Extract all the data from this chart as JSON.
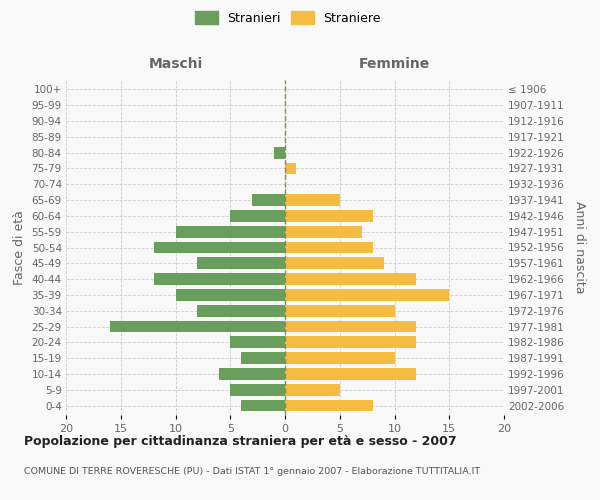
{
  "age_groups": [
    "100+",
    "95-99",
    "90-94",
    "85-89",
    "80-84",
    "75-79",
    "70-74",
    "65-69",
    "60-64",
    "55-59",
    "50-54",
    "45-49",
    "40-44",
    "35-39",
    "30-34",
    "25-29",
    "20-24",
    "15-19",
    "10-14",
    "5-9",
    "0-4"
  ],
  "birth_years": [
    "≤ 1906",
    "1907-1911",
    "1912-1916",
    "1917-1921",
    "1922-1926",
    "1927-1931",
    "1932-1936",
    "1937-1941",
    "1942-1946",
    "1947-1951",
    "1952-1956",
    "1957-1961",
    "1962-1966",
    "1967-1971",
    "1972-1976",
    "1977-1981",
    "1982-1986",
    "1987-1991",
    "1992-1996",
    "1997-2001",
    "2002-2006"
  ],
  "males": [
    0,
    0,
    0,
    0,
    1,
    0,
    0,
    3,
    5,
    10,
    12,
    8,
    12,
    10,
    8,
    16,
    5,
    4,
    6,
    5,
    4
  ],
  "females": [
    0,
    0,
    0,
    0,
    0,
    1,
    0,
    5,
    8,
    7,
    8,
    9,
    12,
    15,
    10,
    12,
    12,
    10,
    12,
    5,
    8
  ],
  "male_color": "#6a9e5c",
  "female_color": "#f5bc42",
  "background_color": "#f9f9f9",
  "grid_color": "#cccccc",
  "title": "Popolazione per cittadinanza straniera per età e sesso - 2007",
  "subtitle": "COMUNE DI TERRE ROVERESCHE (PU) - Dati ISTAT 1° gennaio 2007 - Elaborazione TUTTITALIA.IT",
  "xlabel_left": "Maschi",
  "xlabel_right": "Femmine",
  "ylabel_left": "Fasce di età",
  "ylabel_right": "Anni di nascita",
  "legend_male": "Stranieri",
  "legend_female": "Straniere",
  "xlim": 20
}
